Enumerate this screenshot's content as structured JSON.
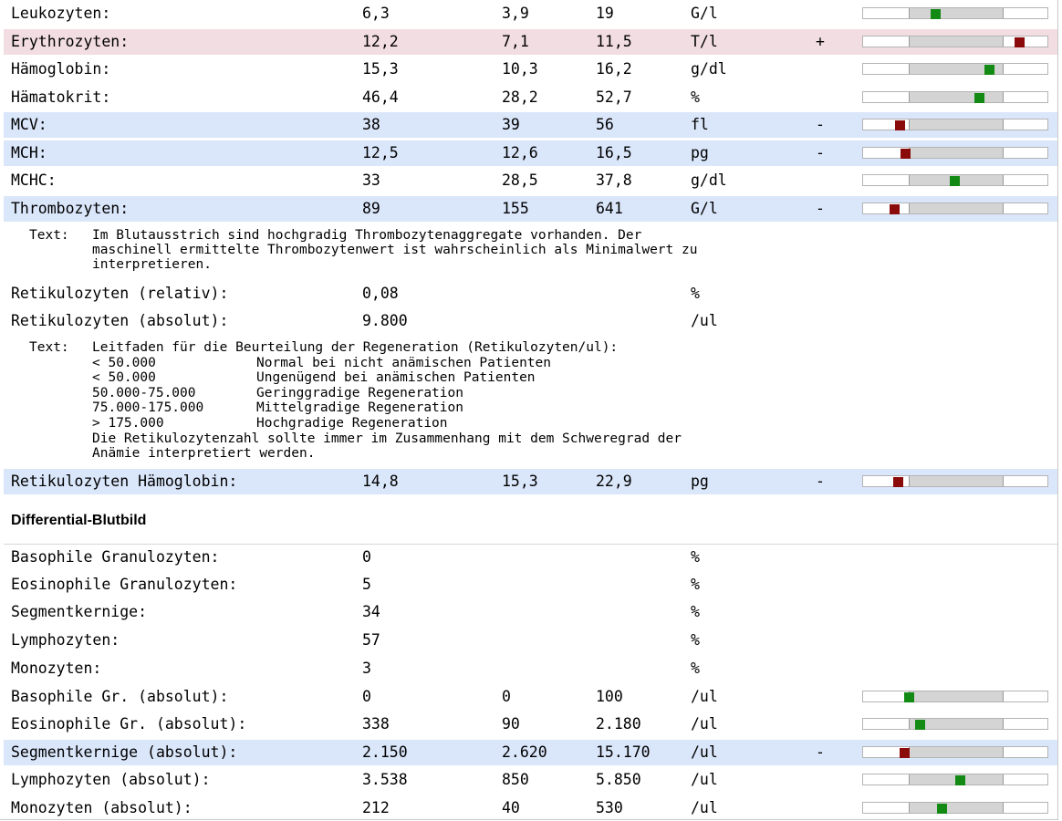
{
  "rows_top": [
    {
      "name": "Leukozyten:",
      "value": "6,3",
      "min": "3,9",
      "max": "19",
      "unit": "G/l",
      "flag": "",
      "status": "normal",
      "level": 0.28
    },
    {
      "name": "Erythrozyten:",
      "value": "12,2",
      "min": "7,1",
      "max": "11,5",
      "unit": "T/l",
      "flag": "+",
      "status": "high",
      "level": 1.16
    },
    {
      "name": "Hämoglobin:",
      "value": "15,3",
      "min": "10,3",
      "max": "16,2",
      "unit": "g/dl",
      "flag": "",
      "status": "normal",
      "level": 0.85
    },
    {
      "name": "Hämatokrit:",
      "value": "46,4",
      "min": "28,2",
      "max": "52,7",
      "unit": "%",
      "flag": "",
      "status": "normal",
      "level": 0.74
    },
    {
      "name": "MCV:",
      "value": "38",
      "min": "39",
      "max": "56",
      "unit": "fl",
      "flag": "-",
      "status": "low",
      "level": -0.1
    },
    {
      "name": "MCH:",
      "value": "12,5",
      "min": "12,6",
      "max": "16,5",
      "unit": "pg",
      "flag": "-",
      "status": "low",
      "level": -0.04
    },
    {
      "name": "MCHC:",
      "value": "33",
      "min": "28,5",
      "max": "37,8",
      "unit": "g/dl",
      "flag": "",
      "status": "normal",
      "level": 0.48
    },
    {
      "name": "Thrombozyten:",
      "value": "89",
      "min": "155",
      "max": "641",
      "unit": "G/l",
      "flag": "-",
      "status": "low",
      "level": -0.15
    }
  ],
  "note1": {
    "label": "Text:",
    "lines": [
      "Im Blutausstrich sind hochgradig Thrombozytenaggregate vorhanden. Der",
      "maschinell ermittelte Thrombozytenwert ist wahrscheinlich als Minimalwert zu",
      "interpretieren."
    ]
  },
  "rows_retic": [
    {
      "name": "Retikulozyten (relativ):",
      "value": "0,08",
      "unit": "%"
    },
    {
      "name": "Retikulozyten (absolut):",
      "value": "9.800",
      "unit": "/ul"
    }
  ],
  "note2": {
    "label": "Text:",
    "intro": "Leitfaden für die Beurteilung der Regeneration (Retikulozyten/ul):",
    "table": [
      {
        "range": "< 50.000",
        "desc": "Normal bei nicht anämischen Patienten"
      },
      {
        "range": "< 50.000",
        "desc": "Ungenügend bei anämischen Patienten"
      },
      {
        "range": "50.000-75.000",
        "desc": "Geringgradige Regeneration"
      },
      {
        "range": "75.000-175.000",
        "desc": "Mittelgradige Regeneration"
      },
      {
        "range": "> 175.000",
        "desc": "Hochgradige Regeneration"
      }
    ],
    "outro": [
      "Die Retikulozytenzahl sollte immer im Zusammenhang mit dem Schweregrad der",
      "Anämie interpretiert werden."
    ]
  },
  "row_ret_hb": {
    "name": "Retikulozyten Hämoglobin:",
    "value": "14,8",
    "min": "15,3",
    "max": "22,9",
    "unit": "pg",
    "flag": "-",
    "status": "low",
    "level": -0.12
  },
  "section_title": "Differential-Blutbild",
  "rows_diff_rel": [
    {
      "name": "Basophile Granulozyten:",
      "value": "0",
      "unit": "%"
    },
    {
      "name": "Eosinophile Granulozyten:",
      "value": "5",
      "unit": "%"
    },
    {
      "name": "Segmentkernige:",
      "value": "34",
      "unit": "%"
    },
    {
      "name": "Lymphozyten:",
      "value": "57",
      "unit": "%"
    },
    {
      "name": "Monozyten:",
      "value": "3",
      "unit": "%"
    }
  ],
  "rows_diff_abs": [
    {
      "name": "Basophile Gr. (absolut):",
      "value": "0",
      "min": "0",
      "max": "100",
      "unit": "/ul",
      "flag": "",
      "status": "normal",
      "level": 0.0
    },
    {
      "name": "Eosinophile Gr. (absolut):",
      "value": "338",
      "min": "90",
      "max": "2.180",
      "unit": "/ul",
      "flag": "",
      "status": "normal",
      "level": 0.12
    },
    {
      "name": "Segmentkernige (absolut):",
      "value": "2.150",
      "min": "2.620",
      "max": "15.170",
      "unit": "/ul",
      "flag": "-",
      "status": "low",
      "level": -0.05
    },
    {
      "name": "Lymphozyten (absolut):",
      "value": "3.538",
      "min": "850",
      "max": "5.850",
      "unit": "/ul",
      "flag": "",
      "status": "normal",
      "level": 0.54
    },
    {
      "name": "Monozyten (absolut):",
      "value": "212",
      "min": "40",
      "max": "530",
      "unit": "/ul",
      "flag": "",
      "status": "normal",
      "level": 0.35
    }
  ],
  "colors": {
    "low_row": "#dae6fa",
    "high_row": "#f2dde2",
    "mark_ok": "#138a13",
    "mark_bad": "#8b0a0a",
    "range": "#d4d4d4"
  }
}
